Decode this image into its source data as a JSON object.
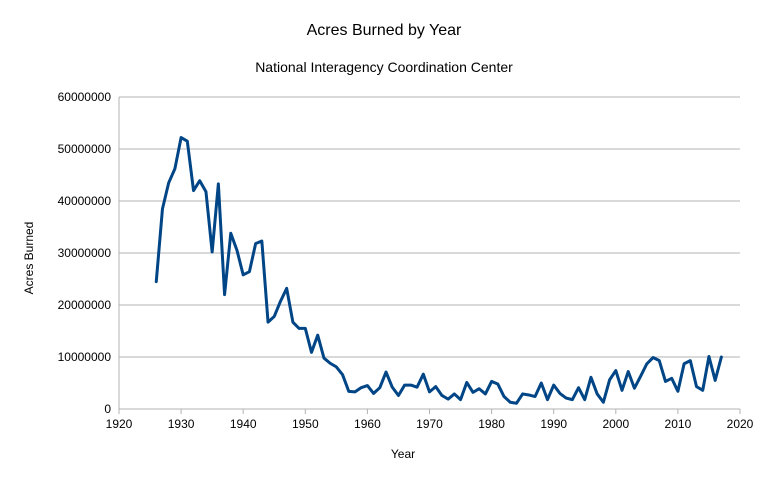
{
  "chart_data": {
    "type": "line",
    "title": "Acres Burned by Year",
    "subtitle": "National Interagency Coordination Center",
    "xlabel": "Year",
    "ylabel": "Acres Burned",
    "xlim": [
      1920,
      2020
    ],
    "ylim": [
      0,
      60000000
    ],
    "xticks": [
      1920,
      1930,
      1940,
      1950,
      1960,
      1970,
      1980,
      1990,
      2000,
      2010,
      2020
    ],
    "yticks": [
      0,
      10000000,
      20000000,
      30000000,
      40000000,
      50000000,
      60000000
    ],
    "grid": "horizontal",
    "legend": "none",
    "series": [
      {
        "name": "Acres Burned",
        "color": "#004586",
        "x": [
          1926,
          1927,
          1928,
          1929,
          1930,
          1931,
          1932,
          1933,
          1934,
          1935,
          1936,
          1937,
          1938,
          1939,
          1940,
          1941,
          1942,
          1943,
          1944,
          1945,
          1946,
          1947,
          1948,
          1949,
          1950,
          1951,
          1952,
          1953,
          1954,
          1955,
          1956,
          1957,
          1958,
          1959,
          1960,
          1961,
          1962,
          1963,
          1964,
          1965,
          1966,
          1967,
          1968,
          1969,
          1970,
          1971,
          1972,
          1973,
          1974,
          1975,
          1976,
          1977,
          1978,
          1979,
          1980,
          1981,
          1982,
          1983,
          1984,
          1985,
          1986,
          1987,
          1988,
          1989,
          1990,
          1991,
          1992,
          1993,
          1994,
          1995,
          1996,
          1997,
          1998,
          1999,
          2000,
          2001,
          2002,
          2003,
          2004,
          2005,
          2006,
          2007,
          2008,
          2009,
          2010,
          2011,
          2012,
          2013,
          2014,
          2015,
          2016,
          2017
        ],
        "values": [
          24500000,
          38500000,
          43500000,
          46200000,
          52200000,
          51500000,
          42000000,
          43900000,
          41800000,
          30200000,
          43300000,
          22000000,
          33800000,
          30500000,
          25800000,
          26400000,
          31800000,
          32300000,
          16700000,
          17800000,
          20700000,
          23200000,
          16700000,
          15500000,
          15500000,
          10900000,
          14200000,
          9800000,
          8800000,
          8100000,
          6600000,
          3400000,
          3300000,
          4100000,
          4500000,
          3000000,
          4100000,
          7100000,
          4200000,
          2600000,
          4600000,
          4600000,
          4200000,
          6700000,
          3300000,
          4300000,
          2600000,
          1900000,
          2900000,
          1800000,
          5100000,
          3200000,
          3900000,
          2900000,
          5300000,
          4800000,
          2400000,
          1300000,
          1100000,
          2900000,
          2700000,
          2400000,
          5000000,
          1800000,
          4600000,
          3000000,
          2100000,
          1800000,
          4100000,
          1800000,
          6100000,
          2900000,
          1300000,
          5600000,
          7400000,
          3600000,
          7200000,
          4000000,
          6300000,
          8700000,
          9900000,
          9300000,
          5300000,
          5900000,
          3400000,
          8700000,
          9300000,
          4300000,
          3600000,
          10100000,
          5500000,
          10000000
        ]
      }
    ]
  }
}
